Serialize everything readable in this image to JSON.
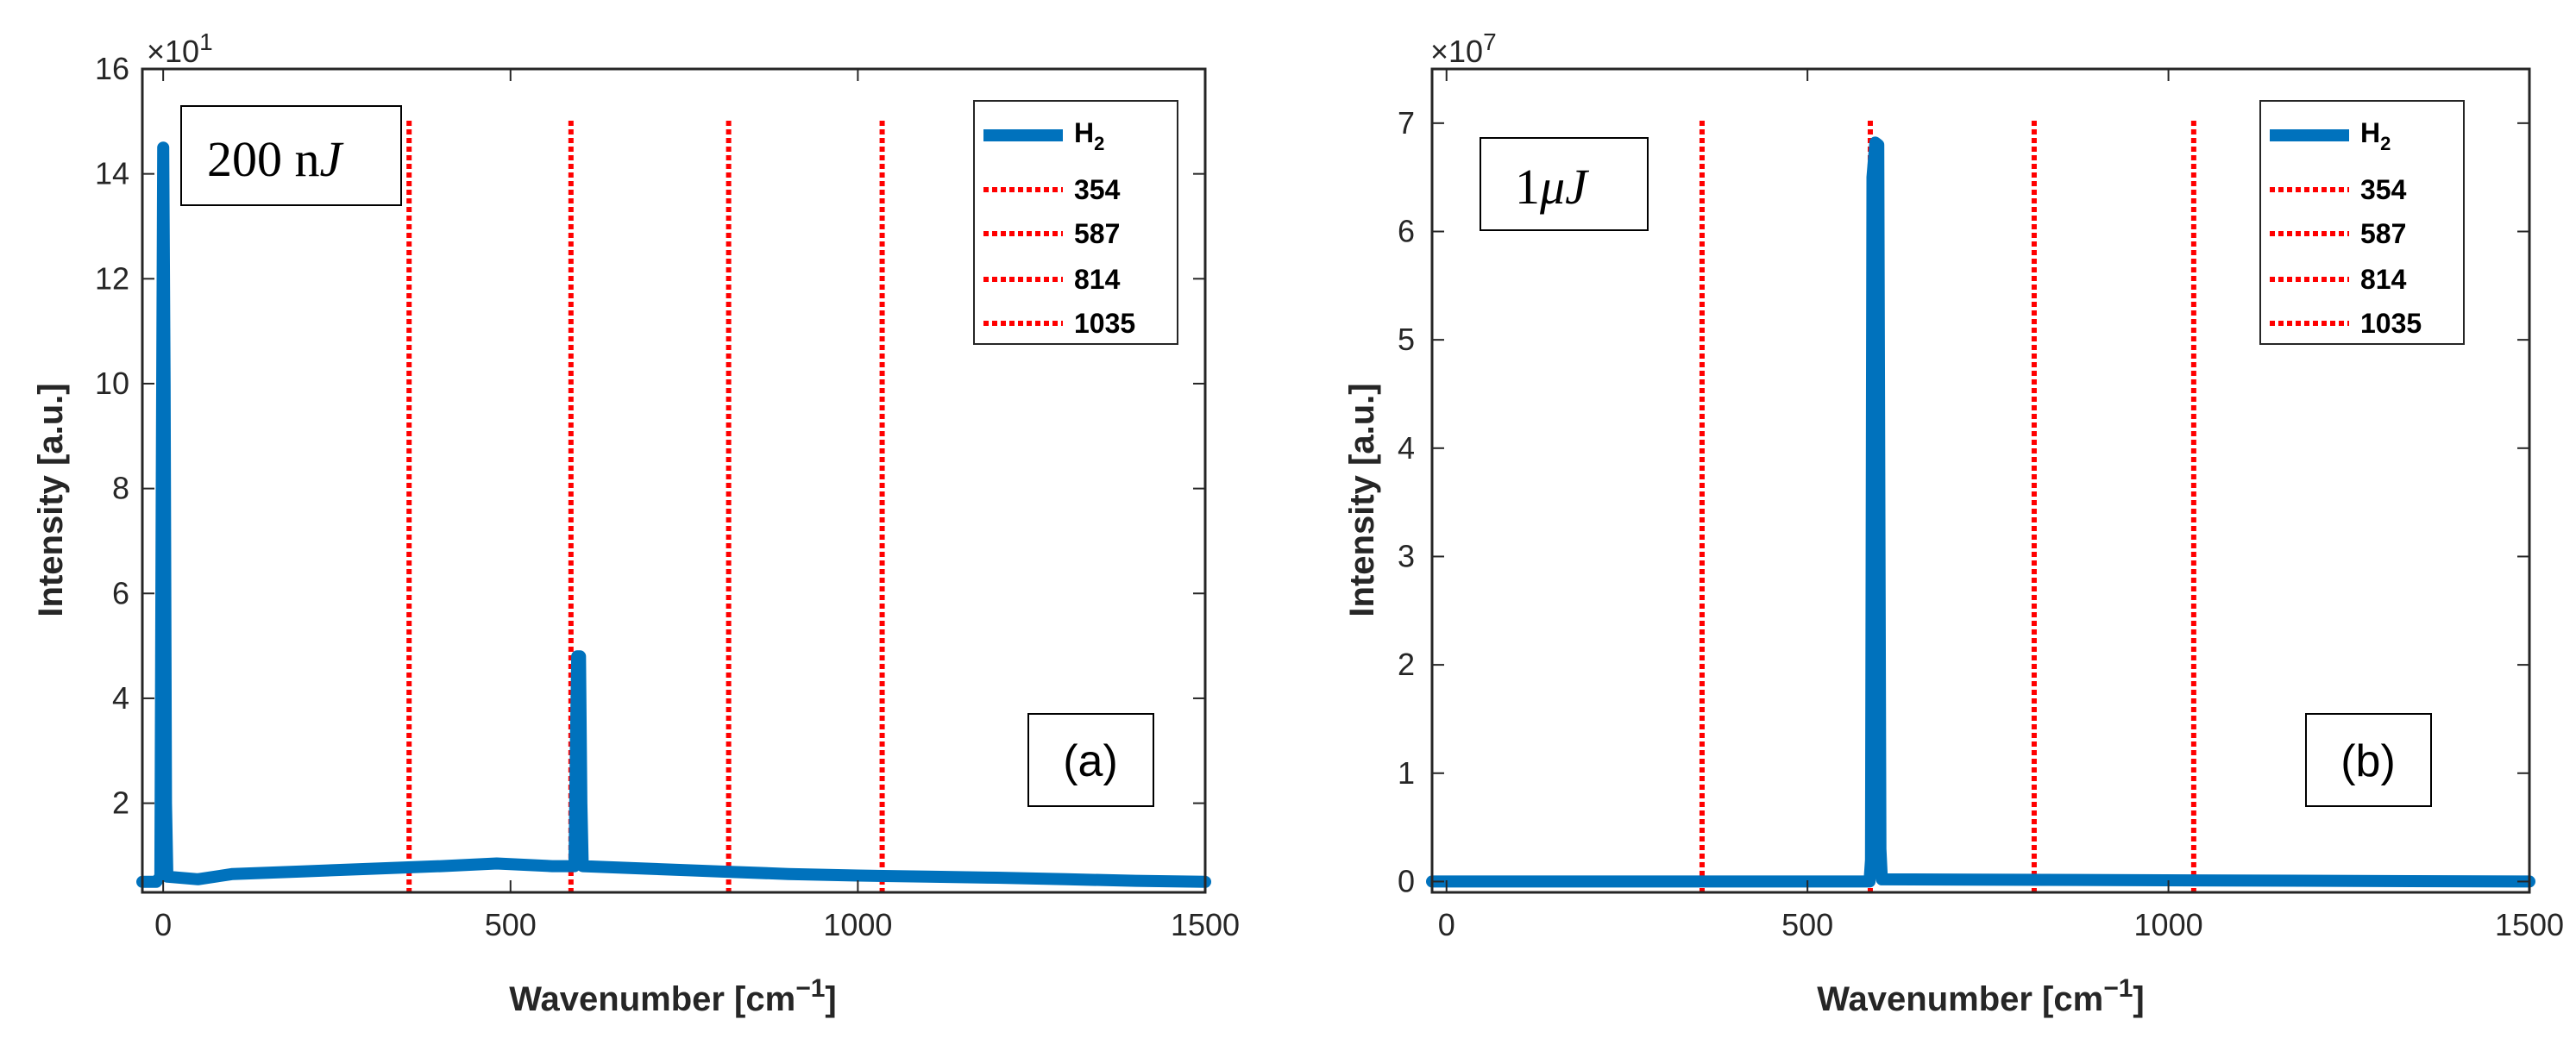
{
  "chart_data": [
    {
      "type": "line",
      "panel_tag": "(a)",
      "annotation": "200 nJ",
      "annotation_parts": [
        "200 n",
        "J"
      ],
      "xlabel": "Wavenumber [cm",
      "xlabel_sup": "−1",
      "xlabel_end": "]",
      "ylabel": "Intensity [a.u.]",
      "y_exponent_base": "×10",
      "y_exponent_power": "1",
      "xlim": [
        -30,
        1500
      ],
      "ylim": [
        3,
        160
      ],
      "xticks": [
        0,
        500,
        1000,
        1500
      ],
      "xtick_labels": [
        "0",
        "500",
        "1000",
        "1500"
      ],
      "yticks": [
        20,
        40,
        60,
        80,
        100,
        120,
        140,
        160
      ],
      "ytick_labels": [
        "2",
        "4",
        "6",
        "8",
        "10",
        "12",
        "14",
        "16"
      ],
      "series": [
        {
          "name": "H2",
          "name_base": "H",
          "name_sub": "2",
          "color": "#0072BD",
          "points": [
            [
              -30,
              5
            ],
            [
              -10,
              5
            ],
            [
              -4,
              6
            ],
            [
              -2,
              80
            ],
            [
              0,
              145
            ],
            [
              2,
              100
            ],
            [
              4,
              20
            ],
            [
              6,
              6
            ],
            [
              50,
              5.5
            ],
            [
              100,
              6.5
            ],
            [
              200,
              7
            ],
            [
              300,
              7.5
            ],
            [
              400,
              8
            ],
            [
              480,
              8.5
            ],
            [
              560,
              8
            ],
            [
              592,
              8
            ],
            [
              594,
              30
            ],
            [
              596,
              48
            ],
            [
              600,
              48
            ],
            [
              602,
              20
            ],
            [
              604,
              8
            ],
            [
              700,
              7.5
            ],
            [
              800,
              7
            ],
            [
              900,
              6.5
            ],
            [
              1000,
              6.2
            ],
            [
              1100,
              6
            ],
            [
              1200,
              5.8
            ],
            [
              1300,
              5.5
            ],
            [
              1400,
              5.2
            ],
            [
              1500,
              5
            ]
          ]
        }
      ],
      "reference_lines": [
        {
          "name": "354",
          "x": 354,
          "color": "#FF0000"
        },
        {
          "name": "587",
          "x": 587,
          "color": "#FF0000"
        },
        {
          "name": "814",
          "x": 814,
          "color": "#FF0000"
        },
        {
          "name": "1035",
          "x": 1035,
          "color": "#FF0000"
        }
      ]
    },
    {
      "type": "line",
      "panel_tag": "(b)",
      "annotation": "1μJ",
      "annotation_parts": [
        "1",
        "μJ"
      ],
      "xlabel": "Wavenumber [cm",
      "xlabel_sup": "−1",
      "xlabel_end": "]",
      "ylabel": "Intensity [a.u.]",
      "y_exponent_base": "×10",
      "y_exponent_power": "7",
      "xlim": [
        -20,
        1500
      ],
      "ylim": [
        -0.1,
        7.5
      ],
      "xticks": [
        0,
        500,
        1000,
        1500
      ],
      "xtick_labels": [
        "0",
        "500",
        "1000",
        "1500"
      ],
      "yticks": [
        0,
        1,
        2,
        3,
        4,
        5,
        6,
        7
      ],
      "ytick_labels": [
        "0",
        "1",
        "2",
        "3",
        "4",
        "5",
        "6",
        "7"
      ],
      "series": [
        {
          "name": "H2",
          "name_base": "H",
          "name_sub": "2",
          "color": "#0072BD",
          "points": [
            [
              -20,
              0
            ],
            [
              586,
              0
            ],
            [
              588,
              0.2
            ],
            [
              590,
              6.5
            ],
            [
              594,
              6.82
            ],
            [
              598,
              6.8
            ],
            [
              601,
              0.3
            ],
            [
              603,
              0.02
            ],
            [
              1500,
              0
            ]
          ]
        }
      ],
      "reference_lines": [
        {
          "name": "354",
          "x": 354,
          "color": "#FF0000"
        },
        {
          "name": "587",
          "x": 587,
          "color": "#FF0000"
        },
        {
          "name": "814",
          "x": 814,
          "color": "#FF0000"
        },
        {
          "name": "1035",
          "x": 1035,
          "color": "#FF0000"
        }
      ]
    }
  ]
}
